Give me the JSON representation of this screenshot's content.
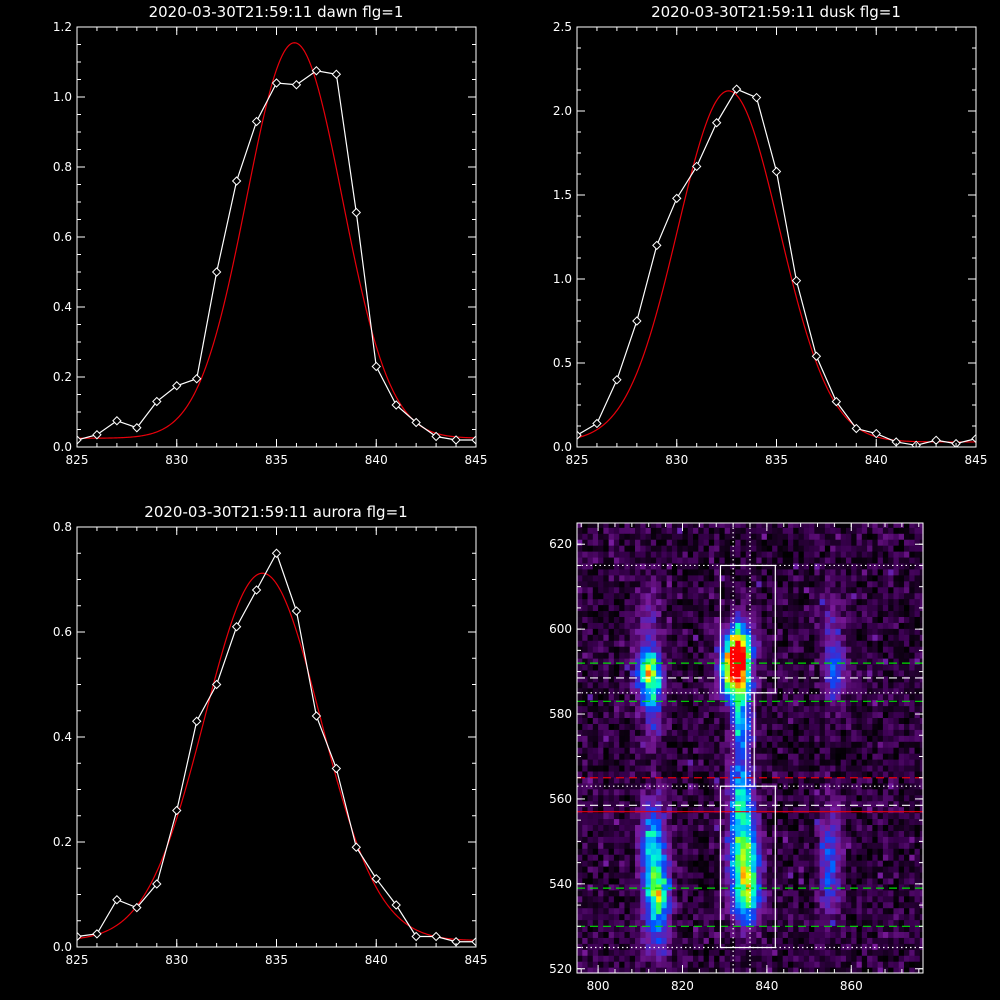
{
  "chart_data": [
    {
      "type": "line",
      "title": "2020-03-30T21:59:11 dawn flg=1",
      "xlim": [
        825,
        845
      ],
      "ylim": [
        0,
        1.2
      ],
      "x_ticks": [
        "825",
        "830",
        "835",
        "840",
        "845"
      ],
      "y_ticks": [
        "0.0",
        "0.2",
        "0.4",
        "0.6",
        "0.8",
        "1.0",
        "1.2"
      ],
      "series": [
        {
          "role": "measured",
          "color": "#ffffff",
          "marker": "diamond",
          "x": [
            825,
            826,
            827,
            828,
            829,
            830,
            831,
            832,
            833,
            834,
            835,
            836,
            837,
            838,
            839,
            840,
            841,
            842,
            843,
            844,
            845
          ],
          "y": [
            0.02,
            0.035,
            0.075,
            0.055,
            0.13,
            0.175,
            0.195,
            0.5,
            0.76,
            0.93,
            1.04,
            1.035,
            1.075,
            1.065,
            0.67,
            0.23,
            0.12,
            0.07,
            0.03,
            0.02,
            0.02
          ]
        },
        {
          "role": "fit",
          "color": "#e8000b",
          "gauss": {
            "a": 1.13,
            "mu": 835.9,
            "sigma": 2.4,
            "c": 0.025
          }
        }
      ]
    },
    {
      "type": "line",
      "title": "2020-03-30T21:59:11 dusk flg=1",
      "xlim": [
        825,
        845
      ],
      "ylim": [
        0,
        2.5
      ],
      "x_ticks": [
        "825",
        "830",
        "835",
        "840",
        "845"
      ],
      "y_ticks": [
        "0.0",
        "0.5",
        "1.0",
        "1.5",
        "2.0",
        "2.5"
      ],
      "series": [
        {
          "role": "measured",
          "color": "#ffffff",
          "marker": "diamond",
          "x": [
            825,
            826,
            827,
            828,
            829,
            830,
            831,
            832,
            833,
            834,
            835,
            836,
            837,
            838,
            839,
            840,
            841,
            842,
            843,
            844,
            845
          ],
          "y": [
            0.07,
            0.14,
            0.4,
            0.75,
            1.2,
            1.48,
            1.67,
            1.93,
            2.13,
            2.08,
            1.64,
            0.99,
            0.54,
            0.27,
            0.11,
            0.08,
            0.03,
            0.01,
            0.04,
            0.02,
            0.05
          ]
        },
        {
          "role": "fit",
          "color": "#e8000b",
          "gauss": {
            "a": 2.09,
            "mu": 832.6,
            "sigma": 2.55,
            "c": 0.03
          }
        }
      ]
    },
    {
      "type": "line",
      "title": "2020-03-30T21:59:11 aurora flg=1",
      "xlim": [
        825,
        845
      ],
      "ylim": [
        0,
        0.8
      ],
      "x_ticks": [
        "825",
        "830",
        "835",
        "840",
        "845"
      ],
      "y_ticks": [
        "0.0",
        "0.2",
        "0.4",
        "0.6",
        "0.8"
      ],
      "series": [
        {
          "role": "measured",
          "color": "#ffffff",
          "marker": "diamond",
          "x": [
            825,
            826,
            827,
            828,
            829,
            830,
            831,
            832,
            833,
            834,
            835,
            836,
            837,
            838,
            839,
            840,
            841,
            842,
            843,
            844,
            845
          ],
          "y": [
            0.02,
            0.025,
            0.09,
            0.075,
            0.12,
            0.26,
            0.43,
            0.5,
            0.61,
            0.68,
            0.75,
            0.64,
            0.44,
            0.34,
            0.19,
            0.13,
            0.08,
            0.02,
            0.02,
            0.01,
            0.01
          ]
        },
        {
          "role": "fit",
          "color": "#e8000b",
          "gauss": {
            "a": 0.7,
            "mu": 834.3,
            "sigma": 2.9,
            "c": 0.012
          }
        }
      ]
    },
    {
      "type": "heatmap",
      "xlim": [
        795,
        877
      ],
      "ylim": [
        519,
        625
      ],
      "x_ticks": [
        "800",
        "820",
        "840",
        "860"
      ],
      "y_ticks": [
        "520",
        "540",
        "560",
        "580",
        "600",
        "620"
      ],
      "colormap": [
        "#000000",
        "#3a0050",
        "#7a1a9a",
        "#3d2bd0",
        "#0050ff",
        "#00b0ff",
        "#00ffd0",
        "#40ff40",
        "#ffff00",
        "#ff8000",
        "#ff0000"
      ],
      "blobs": [
        {
          "x": 832.5,
          "y": 590.5,
          "sx": 2.3,
          "sy": 4.5,
          "amp": 1.0
        },
        {
          "x": 833.5,
          "y": 597,
          "sx": 2.0,
          "sy": 4.0,
          "amp": 0.55
        },
        {
          "x": 834,
          "y": 578,
          "sx": 1.6,
          "sy": 6.0,
          "amp": 0.45
        },
        {
          "x": 834,
          "y": 560,
          "sx": 2.0,
          "sy": 6.0,
          "amp": 0.5
        },
        {
          "x": 834.5,
          "y": 548,
          "sx": 2.3,
          "sy": 5.0,
          "amp": 0.55
        },
        {
          "x": 835,
          "y": 538,
          "sx": 2.3,
          "sy": 5.0,
          "amp": 0.65
        },
        {
          "x": 812,
          "y": 590,
          "sx": 2.0,
          "sy": 4.0,
          "amp": 0.6
        },
        {
          "x": 813,
          "y": 582,
          "sx": 1.6,
          "sy": 6.0,
          "amp": 0.28
        },
        {
          "x": 813,
          "y": 550,
          "sx": 2.0,
          "sy": 7.0,
          "amp": 0.45
        },
        {
          "x": 814,
          "y": 538,
          "sx": 2.0,
          "sy": 5.0,
          "amp": 0.6
        },
        {
          "x": 814,
          "y": 527,
          "sx": 2.2,
          "sy": 4.0,
          "amp": 0.2
        },
        {
          "x": 856,
          "y": 590,
          "sx": 1.8,
          "sy": 5.0,
          "amp": 0.32
        },
        {
          "x": 855,
          "y": 545,
          "sx": 1.8,
          "sy": 9.0,
          "amp": 0.28
        },
        {
          "x": 812,
          "y": 603,
          "sx": 2.0,
          "sy": 6.0,
          "amp": 0.15
        },
        {
          "x": 855,
          "y": 603,
          "sx": 2.0,
          "sy": 5.0,
          "amp": 0.14
        }
      ],
      "overlays": {
        "boxes": [
          {
            "x0": 829,
            "x1": 842,
            "y0": 585,
            "y1": 615
          },
          {
            "x0": 829,
            "x1": 842,
            "y0": 525,
            "y1": 563
          },
          {
            "x0": 835,
            "x1": 837,
            "y0": 563,
            "y1": 585
          }
        ],
        "hlines": [
          {
            "y": 615,
            "color": "#ffffff",
            "dash": "dotted"
          },
          {
            "y": 592,
            "color": "#00e000",
            "dash": "dashed"
          },
          {
            "y": 588.5,
            "color": "#ffffff",
            "dash": "dashed"
          },
          {
            "y": 585,
            "color": "#ffffff",
            "dash": "dotted"
          },
          {
            "y": 583,
            "color": "#00e000",
            "dash": "dashed"
          },
          {
            "y": 565,
            "color": "#e8000b",
            "dash": "dashed"
          },
          {
            "y": 563,
            "color": "#ffffff",
            "dash": "dotted"
          },
          {
            "y": 558.5,
            "color": "#ffffff",
            "dash": "dashed"
          },
          {
            "y": 557,
            "color": "#e8000b",
            "dash": "solid"
          },
          {
            "y": 539,
            "color": "#00e000",
            "dash": "dashed"
          },
          {
            "y": 530,
            "color": "#00e000",
            "dash": "dashed"
          },
          {
            "y": 525,
            "color": "#ffffff",
            "dash": "dotted"
          }
        ],
        "vlines": [
          {
            "x": 832,
            "color": "#ffffff",
            "dash": "dotted"
          },
          {
            "x": 836,
            "color": "#ffffff",
            "dash": "dotted"
          }
        ]
      }
    }
  ]
}
